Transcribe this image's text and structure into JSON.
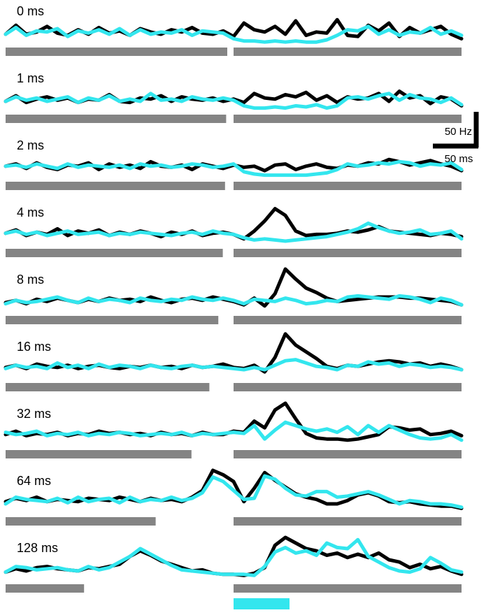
{
  "chart_data": {
    "type": "line",
    "figure": "PSTH panels, response vs. time for increasing gap durations",
    "colors": {
      "trace_a": "#000000",
      "trace_b": "#33e6ee",
      "stim_bar": "#848484",
      "cue_bar": "#33e6ee"
    },
    "scale_bar": {
      "y_label": "50 Hz",
      "x_label": "50 ms"
    },
    "time_points": 45,
    "panels": [
      {
        "label": "0 ms",
        "gap_ms": 0,
        "series": [
          {
            "values": [
              10,
              18,
              10,
              12,
              17,
              11,
              9,
              14,
              10,
              16,
              11,
              13,
              9,
              15,
              12,
              10,
              14,
              12,
              16,
              11,
              10,
              13,
              8,
              20,
              14,
              12,
              17,
              10,
              22,
              9,
              12,
              11,
              23,
              9,
              8,
              18,
              13,
              20,
              8,
              16,
              11,
              14,
              17,
              10,
              6
            ]
          },
          {
            "values": [
              10,
              16,
              9,
              13,
              12,
              15,
              8,
              13,
              11,
              14,
              10,
              15,
              9,
              14,
              10,
              12,
              11,
              14,
              9,
              13,
              12,
              11,
              6,
              4,
              4,
              3,
              4,
              3,
              4,
              3,
              3,
              5,
              9,
              14,
              13,
              17,
              10,
              14,
              9,
              12,
              11,
              16,
              10,
              13,
              9
            ]
          }
        ]
      },
      {
        "label": "1 ms",
        "gap_ms": 1,
        "series": [
          {
            "values": [
              10,
              15,
              9,
              12,
              14,
              11,
              13,
              9,
              12,
              11,
              16,
              10,
              9,
              13,
              12,
              15,
              10,
              14,
              12,
              11,
              13,
              10,
              12,
              9,
              17,
              13,
              12,
              16,
              14,
              18,
              11,
              15,
              9,
              14,
              12,
              13,
              17,
              10,
              19,
              13,
              15,
              8,
              14,
              12,
              6
            ]
          },
          {
            "values": [
              10,
              14,
              11,
              13,
              10,
              12,
              14,
              9,
              13,
              11,
              15,
              10,
              12,
              10,
              17,
              11,
              12,
              10,
              14,
              12,
              11,
              13,
              11,
              6,
              4,
              4,
              5,
              4,
              6,
              5,
              7,
              4,
              6,
              13,
              14,
              12,
              15,
              17,
              11,
              16,
              13,
              12,
              9,
              13,
              7
            ]
          }
        ]
      },
      {
        "label": "2 ms",
        "gap_ms": 2,
        "series": [
          {
            "values": [
              12,
              14,
              10,
              15,
              11,
              9,
              13,
              12,
              15,
              9,
              14,
              11,
              13,
              10,
              16,
              12,
              11,
              13,
              9,
              14,
              12,
              10,
              13,
              11,
              12,
              8,
              13,
              14,
              9,
              12,
              14,
              11,
              10,
              13,
              12,
              15,
              14,
              18,
              16,
              13,
              15,
              17,
              14,
              12,
              8
            ]
          },
          {
            "values": [
              12,
              13,
              11,
              14,
              12,
              10,
              14,
              11,
              13,
              12,
              11,
              13,
              10,
              14,
              12,
              13,
              11,
              12,
              14,
              13,
              11,
              12,
              14,
              7,
              5,
              4,
              4,
              4,
              4,
              4,
              5,
              6,
              9,
              14,
              12,
              13,
              15,
              14,
              16,
              15,
              12,
              14,
              13,
              15,
              9
            ]
          }
        ]
      },
      {
        "label": "4 ms",
        "gap_ms": 4,
        "series": [
          {
            "values": [
              12,
              15,
              10,
              13,
              11,
              16,
              10,
              14,
              12,
              15,
              10,
              13,
              11,
              14,
              12,
              9,
              13,
              11,
              14,
              10,
              12,
              13,
              11,
              7,
              14,
              23,
              34,
              28,
              14,
              10,
              11,
              11,
              12,
              14,
              13,
              15,
              18,
              14,
              13,
              12,
              11,
              10,
              12,
              11,
              9
            ]
          },
          {
            "values": [
              12,
              14,
              11,
              13,
              10,
              12,
              14,
              11,
              12,
              13,
              10,
              12,
              11,
              13,
              12,
              11,
              10,
              12,
              13,
              11,
              14,
              12,
              11,
              8,
              6,
              7,
              6,
              5,
              6,
              7,
              8,
              9,
              11,
              13,
              16,
              21,
              17,
              14,
              12,
              13,
              15,
              11,
              12,
              14,
              7
            ]
          }
        ]
      },
      {
        "label": "8 ms",
        "gap_ms": 8,
        "series": [
          {
            "values": [
              10,
              12,
              9,
              13,
              11,
              14,
              12,
              10,
              13,
              11,
              14,
              12,
              13,
              11,
              15,
              12,
              10,
              13,
              14,
              12,
              15,
              13,
              11,
              8,
              14,
              7,
              18,
              40,
              31,
              23,
              19,
              14,
              11,
              12,
              13,
              14,
              15,
              15,
              15,
              14,
              14,
              13,
              12,
              11,
              8
            ]
          },
          {
            "values": [
              9,
              12,
              10,
              11,
              13,
              15,
              12,
              10,
              14,
              11,
              13,
              12,
              10,
              14,
              12,
              11,
              13,
              12,
              15,
              13,
              12,
              14,
              12,
              9,
              13,
              12,
              11,
              14,
              12,
              9,
              10,
              12,
              11,
              15,
              16,
              15,
              14,
              13,
              16,
              15,
              13,
              10,
              14,
              12,
              8
            ]
          }
        ]
      },
      {
        "label": "16 ms",
        "gap_ms": 16,
        "series": [
          {
            "values": [
              12,
              14,
              11,
              15,
              13,
              12,
              14,
              11,
              13,
              14,
              12,
              11,
              13,
              12,
              14,
              12,
              13,
              11,
              14,
              12,
              13,
              15,
              12,
              11,
              14,
              8,
              21,
              42,
              32,
              26,
              20,
              13,
              11,
              14,
              13,
              15,
              17,
              18,
              17,
              15,
              16,
              13,
              15,
              13,
              10
            ]
          },
          {
            "values": [
              11,
              14,
              12,
              13,
              11,
              16,
              12,
              14,
              11,
              15,
              12,
              14,
              13,
              11,
              14,
              12,
              11,
              13,
              14,
              12,
              13,
              12,
              11,
              10,
              12,
              10,
              14,
              18,
              19,
              16,
              13,
              12,
              10,
              14,
              13,
              17,
              15,
              16,
              13,
              15,
              14,
              12,
              13,
              12,
              10
            ]
          }
        ]
      },
      {
        "label": "32 ms",
        "gap_ms": 32,
        "series": [
          {
            "values": [
              12,
              15,
              11,
              13,
              12,
              14,
              11,
              13,
              12,
              15,
              13,
              14,
              12,
              13,
              11,
              14,
              12,
              13,
              11,
              14,
              12,
              12,
              15,
              14,
              24,
              18,
              34,
              40,
              26,
              13,
              9,
              8,
              8,
              7,
              8,
              10,
              12,
              19,
              18,
              16,
              17,
              12,
              13,
              15,
              11
            ]
          },
          {
            "values": [
              14,
              12,
              13,
              15,
              11,
              13,
              12,
              14,
              11,
              13,
              12,
              14,
              13,
              11,
              12,
              13,
              12,
              14,
              11,
              13,
              12,
              13,
              14,
              13,
              20,
              8,
              16,
              23,
              20,
              17,
              15,
              17,
              14,
              19,
              12,
              20,
              14,
              20,
              16,
              12,
              9,
              8,
              9,
              12,
              7
            ]
          }
        ]
      },
      {
        "label": "64 ms",
        "gap_ms": 64,
        "series": [
          {
            "values": [
              12,
              15,
              13,
              16,
              12,
              14,
              13,
              12,
              15,
              14,
              13,
              16,
              14,
              12,
              15,
              13,
              14,
              12,
              16,
              22,
              40,
              36,
              30,
              12,
              24,
              38,
              31,
              25,
              19,
              16,
              14,
              10,
              10,
              13,
              18,
              20,
              17,
              12,
              11,
              12,
              10,
              9,
              8,
              8,
              6
            ]
          },
          {
            "values": [
              10,
              16,
              14,
              13,
              12,
              15,
              11,
              16,
              12,
              14,
              15,
              11,
              16,
              12,
              14,
              13,
              16,
              13,
              15,
              20,
              34,
              30,
              22,
              14,
              15,
              35,
              32,
              24,
              18,
              17,
              21,
              21,
              16,
              17,
              19,
              21,
              18,
              14,
              10,
              13,
              12,
              10,
              10,
              9,
              7
            ]
          }
        ]
      },
      {
        "label": "128 ms",
        "gap_ms": 128,
        "series": [
          {
            "values": [
              9,
              12,
              10,
              13,
              14,
              12,
              11,
              10,
              13,
              12,
              14,
              16,
              23,
              28,
              24,
              19,
              16,
              13,
              10,
              11,
              8,
              7,
              7,
              6,
              8,
              13,
              33,
              40,
              35,
              30,
              28,
              24,
              26,
              22,
              25,
              22,
              26,
              20,
              18,
              13,
              16,
              12,
              14,
              10,
              7
            ]
          },
          {
            "values": [
              9,
              14,
              13,
              11,
              12,
              13,
              11,
              10,
              14,
              11,
              13,
              18,
              23,
              30,
              25,
              20,
              15,
              11,
              10,
              9,
              8,
              7,
              7,
              7,
              6,
              14,
              27,
              31,
              26,
              28,
              24,
              35,
              31,
              30,
              38,
              23,
              18,
              13,
              10,
              9,
              12,
              22,
              17,
              11,
              9
            ]
          }
        ]
      }
    ]
  }
}
